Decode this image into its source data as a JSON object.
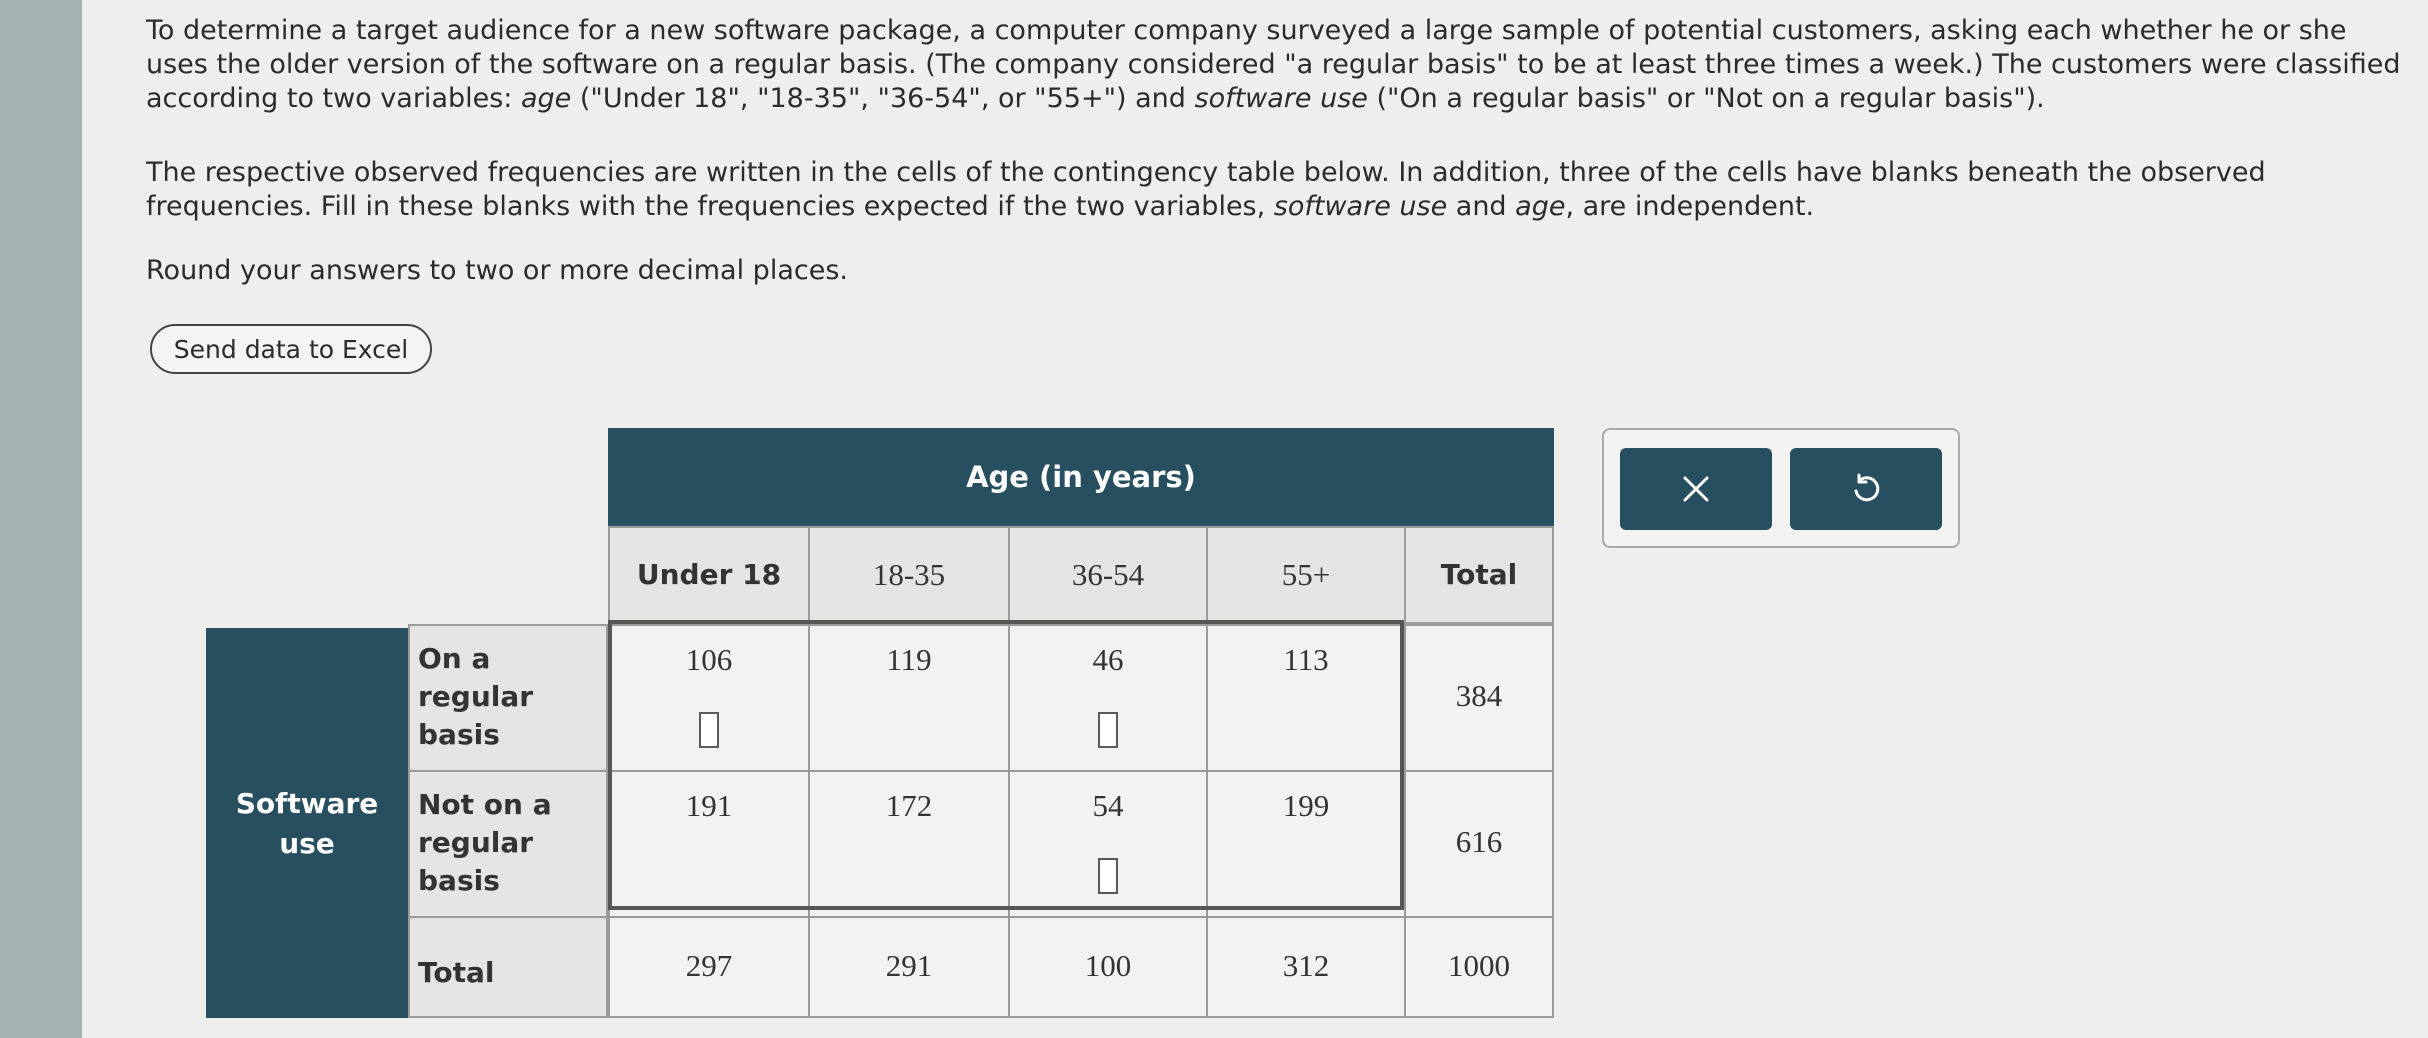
{
  "question": {
    "para1_a": "To determine a target audience for a new software package, a computer company surveyed a large sample of potential customers, asking each whether he or she uses the older version of the software on a regular basis. (The company considered \"a regular basis\" to be at least three times a week.) The customers were classified according to two variables: ",
    "para1_age": "age",
    "para1_b": " (\"Under 18\", \"18-35\", \"36-54\", or \"55+\") and ",
    "para1_use": "software use",
    "para1_c": " (\"On a regular basis\" or \"Not on a regular basis\").",
    "para2_a": "The respective observed frequencies are written in the cells of the contingency table below. In addition, three of the cells have blanks beneath the observed frequencies. Fill in these blanks with the frequencies expected if the two variables, ",
    "para2_use": "software use",
    "para2_b": " and ",
    "para2_age": "age",
    "para2_c": ", are independent.",
    "para3": "Round your answers to two or more decimal places."
  },
  "excel_button": "Send data to Excel",
  "table": {
    "age_header": "Age (in years)",
    "columns": [
      "Under 18",
      "18-35",
      "36-54",
      "55+",
      "Total"
    ],
    "row_group": "Software use",
    "rows": [
      {
        "label": "On a regular basis",
        "values": [
          "106",
          "119",
          "46",
          "113"
        ],
        "total": "384"
      },
      {
        "label": "Not on a regular basis",
        "values": [
          "191",
          "172",
          "54",
          "199"
        ],
        "total": "616"
      }
    ],
    "total_row": {
      "label": "Total",
      "values": [
        "297",
        "291",
        "100",
        "312"
      ],
      "total": "1000"
    }
  },
  "icons": {
    "clear": "x-icon",
    "reset": "undo-icon"
  },
  "colors": {
    "header_dark": "#274f5f",
    "button_dark": "#274f5f"
  }
}
